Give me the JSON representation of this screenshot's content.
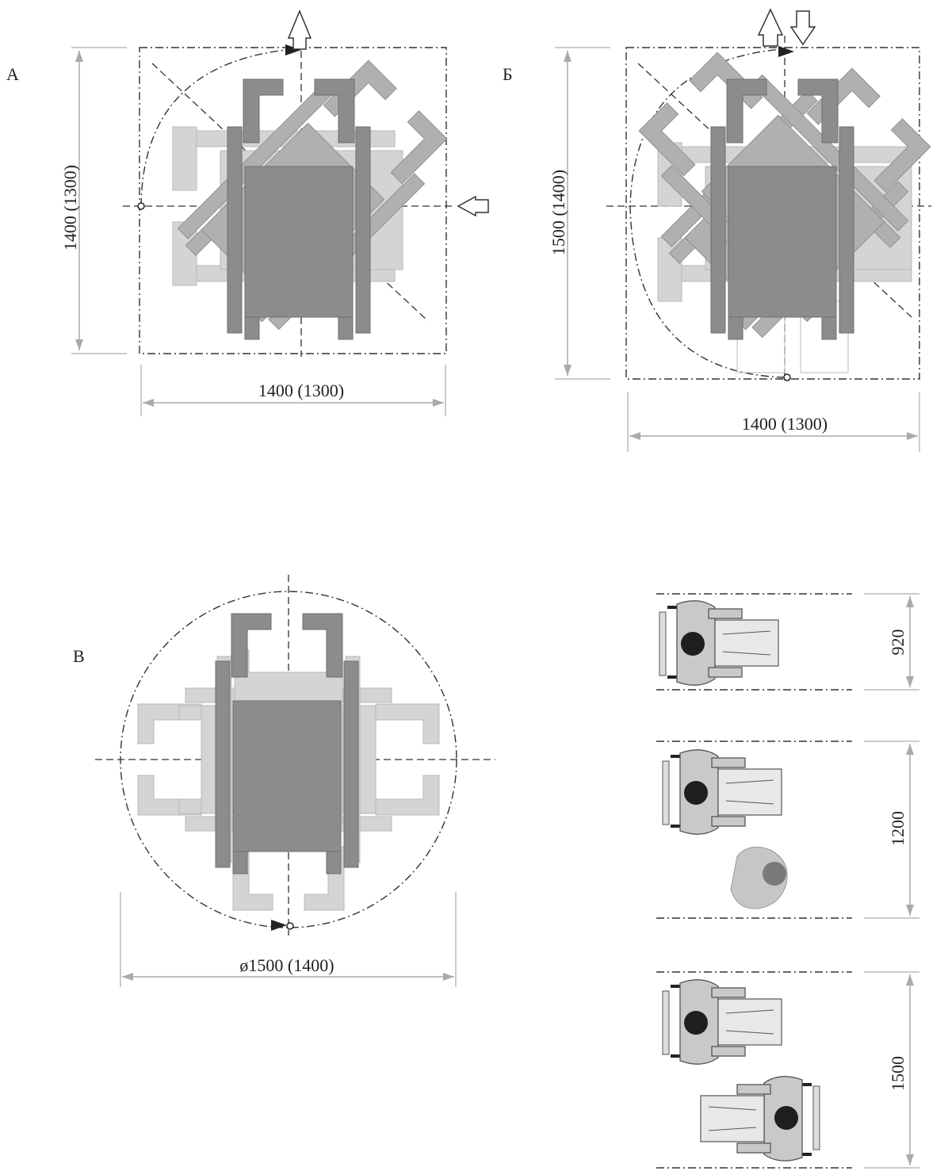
{
  "panels": {
    "a": {
      "letter": "А",
      "width_label": "1400 (1300)",
      "height_label": "1400 (1300)"
    },
    "b": {
      "letter": "Б",
      "width_label": "1400 (1300)",
      "height_label": "1500 (1400)"
    },
    "c": {
      "letter": "В",
      "diameter_label": "ø1500 (1400)"
    }
  },
  "passages": [
    {
      "label": "920"
    },
    {
      "label": "1200"
    },
    {
      "label": "1500"
    }
  ],
  "colors": {
    "wheelchair_dark": "#8c8c8c",
    "wheelchair_mid": "#b0b0b0",
    "wheelchair_light": "#d4d4d4"
  }
}
